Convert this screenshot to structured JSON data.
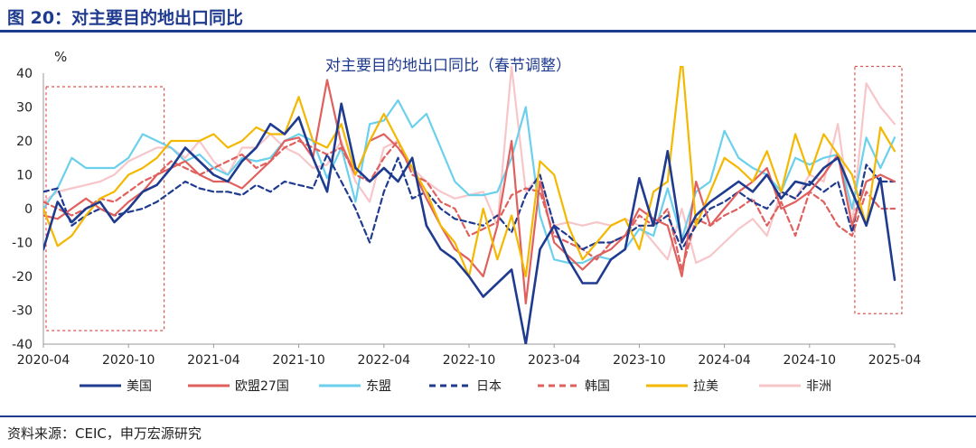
{
  "figure": {
    "title": "图 20：对主要目的地出口同比",
    "source": "资料来源：CEIC，申万宏源研究"
  },
  "colors": {
    "header": "#1f3b8f",
    "box": "#d9534f"
  },
  "chart_data": {
    "type": "line",
    "title": "对主要目的地出口同比（春节调整）",
    "ylabel": "%",
    "xlabel": "",
    "ylim": [
      -40,
      40
    ],
    "yticks": [
      -40,
      -30,
      -20,
      -10,
      0,
      10,
      20,
      30,
      40
    ],
    "grid": false,
    "legend": "bottom",
    "x": [
      "2020-04",
      "2020-05",
      "2020-06",
      "2020-07",
      "2020-08",
      "2020-09",
      "2020-10",
      "2020-11",
      "2020-12",
      "2021-01",
      "2021-02",
      "2021-03",
      "2021-04",
      "2021-05",
      "2021-06",
      "2021-07",
      "2021-08",
      "2021-09",
      "2021-10",
      "2021-11",
      "2021-12",
      "2022-01",
      "2022-02",
      "2022-03",
      "2022-04",
      "2022-05",
      "2022-06",
      "2022-07",
      "2022-08",
      "2022-09",
      "2022-10",
      "2022-11",
      "2022-12",
      "2023-01",
      "2023-02",
      "2023-03",
      "2023-04",
      "2023-05",
      "2023-06",
      "2023-07",
      "2023-08",
      "2023-09",
      "2023-10",
      "2023-11",
      "2023-12",
      "2024-01",
      "2024-02",
      "2024-03",
      "2024-04",
      "2024-05",
      "2024-06",
      "2024-07",
      "2024-08",
      "2024-09",
      "2024-10",
      "2024-11",
      "2024-12",
      "2025-01",
      "2025-02",
      "2025-03",
      "2025-04"
    ],
    "xticks": [
      "2020-04",
      "2020-10",
      "2021-04",
      "2021-10",
      "2022-04",
      "2022-10",
      "2023-04",
      "2023-10",
      "2024-04",
      "2024-10",
      "2025-04"
    ],
    "series": [
      {
        "name": "美国",
        "color": "#1f3b8f",
        "dash": "solid",
        "values": [
          -12,
          2,
          -4,
          0,
          2,
          -4,
          0,
          5,
          7,
          12,
          18,
          14,
          10,
          8,
          14,
          18,
          25,
          22,
          27,
          15,
          5,
          31,
          12,
          8,
          12,
          8,
          15,
          -5,
          -12,
          -15,
          -20,
          -26,
          -22,
          -18,
          -40,
          -12,
          -5,
          -15,
          -22,
          -22,
          -15,
          -12,
          9,
          -5,
          17,
          -10,
          -2,
          2,
          5,
          8,
          5,
          10,
          3,
          8,
          7,
          12,
          15,
          5,
          -5,
          9,
          -21
        ]
      },
      {
        "name": "欧盟27国",
        "color": "#e0605e",
        "dash": "solid",
        "values": [
          -2,
          -3,
          0,
          3,
          0,
          -2,
          2,
          5,
          10,
          12,
          14,
          10,
          8,
          8,
          6,
          10,
          14,
          20,
          21,
          15,
          38,
          19,
          10,
          20,
          22,
          18,
          12,
          3,
          -5,
          -12,
          -15,
          -20,
          -5,
          20,
          -28,
          8,
          -10,
          -14,
          -18,
          -14,
          -12,
          -8,
          0,
          -3,
          -5,
          -20,
          8,
          -5,
          0,
          5,
          8,
          12,
          0,
          2,
          5,
          10,
          16,
          -5,
          8,
          10,
          8
        ]
      },
      {
        "name": "东盟",
        "color": "#6bd0ec",
        "dash": "solid",
        "values": [
          0,
          6,
          15,
          12,
          12,
          12,
          15,
          22,
          20,
          18,
          14,
          16,
          12,
          10,
          15,
          14,
          15,
          20,
          22,
          20,
          9,
          18,
          2,
          25,
          26,
          32,
          24,
          28,
          18,
          8,
          4,
          4,
          5,
          15,
          30,
          -2,
          -15,
          -16,
          -16,
          -14,
          -15,
          -12,
          -6,
          -8,
          6,
          -9,
          5,
          8,
          23,
          15,
          12,
          10,
          5,
          15,
          13,
          15,
          16,
          0,
          21,
          12,
          21
        ]
      },
      {
        "name": "日本",
        "color": "#1f3b8f",
        "dash": "dash",
        "values": [
          5,
          6,
          -5,
          -2,
          0,
          -2,
          -1,
          0,
          2,
          5,
          8,
          6,
          5,
          5,
          4,
          7,
          5,
          8,
          7,
          6,
          16,
          8,
          0,
          -10,
          5,
          15,
          3,
          5,
          0,
          -3,
          -4,
          -5,
          -2,
          -7,
          4,
          10,
          -5,
          -8,
          -12,
          -10,
          -10,
          -8,
          -5,
          -5,
          -2,
          -12,
          -5,
          0,
          2,
          5,
          2,
          0,
          5,
          3,
          8,
          5,
          8,
          -7,
          13,
          8,
          8
        ]
      },
      {
        "name": "韩国",
        "color": "#e0605e",
        "dash": "dash",
        "values": [
          2,
          0,
          -2,
          0,
          3,
          2,
          5,
          8,
          10,
          14,
          12,
          10,
          12,
          14,
          16,
          12,
          14,
          18,
          20,
          18,
          16,
          18,
          10,
          8,
          15,
          20,
          10,
          8,
          2,
          0,
          -8,
          -6,
          -4,
          4,
          6,
          5,
          -8,
          -10,
          -12,
          -15,
          -10,
          -8,
          -2,
          -5,
          0,
          -18,
          -3,
          -5,
          -2,
          0,
          3,
          -5,
          2,
          -8,
          5,
          2,
          -5,
          -8,
          5,
          0,
          0
        ]
      },
      {
        "name": "拉美",
        "color": "#f4b800",
        "dash": "solid",
        "values": [
          0,
          -11,
          -8,
          -2,
          3,
          5,
          10,
          12,
          15,
          20,
          20,
          20,
          22,
          18,
          20,
          24,
          22,
          22,
          33,
          20,
          18,
          25,
          10,
          20,
          28,
          20,
          12,
          5,
          -5,
          -10,
          -20,
          0,
          -15,
          -2,
          -20,
          14,
          10,
          -5,
          -15,
          -10,
          -5,
          -3,
          -12,
          5,
          8,
          45,
          -5,
          5,
          15,
          12,
          8,
          17,
          5,
          22,
          10,
          22,
          16,
          10,
          -5,
          24,
          17
        ]
      },
      {
        "name": "非洲",
        "color": "#f7c6c9",
        "dash": "solid",
        "values": [
          2,
          5,
          6,
          7,
          8,
          10,
          14,
          16,
          18,
          18,
          15,
          20,
          14,
          10,
          18,
          18,
          22,
          18,
          16,
          12,
          13,
          20,
          8,
          2,
          18,
          20,
          12,
          8,
          5,
          3,
          4,
          5,
          -5,
          42,
          5,
          10,
          -5,
          -4,
          -5,
          -4,
          -5,
          -3,
          -5,
          -10,
          -15,
          0,
          -16,
          -14,
          -10,
          -6,
          -3,
          -8,
          5,
          3,
          10,
          8,
          25,
          -5,
          37,
          30,
          25
        ]
      }
    ],
    "highlight_boxes": [
      {
        "x_start": "2020-04",
        "x_end": "2020-12",
        "y_start": -36,
        "y_end": 36
      },
      {
        "x_start": "2025-01",
        "x_end": "2025-04",
        "y_start": -31,
        "y_end": 42
      }
    ]
  }
}
